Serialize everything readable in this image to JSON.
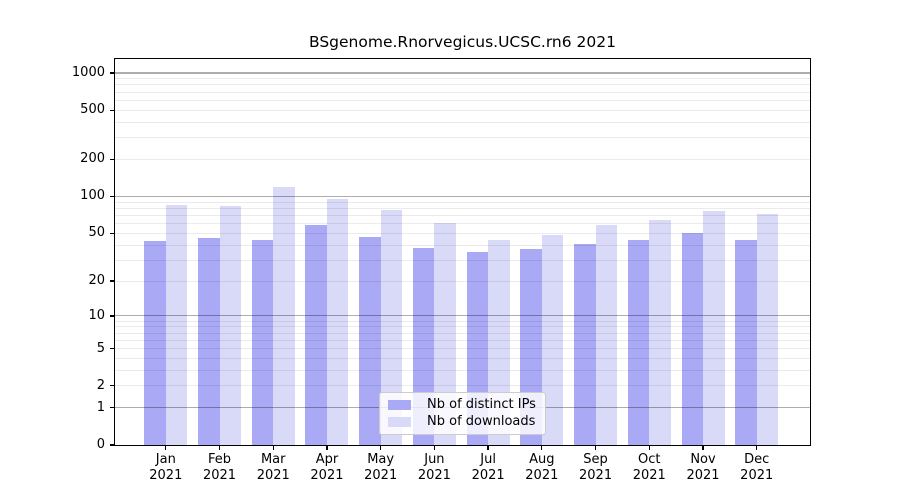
{
  "colors": {
    "background": "#ffffff",
    "text": "#000000",
    "axis": "#000000",
    "major_grid": "rgba(0,0,0,0.32)",
    "minor_grid": "rgba(0,0,0,0.08)",
    "legend_border": "#cccccc",
    "legend_bg": "rgba(255,255,255,0.8)",
    "series_ips": "#a9a9f5",
    "series_downloads": "#d9d9f8"
  },
  "chart_data": {
    "type": "bar",
    "title": "BSgenome.Rnorvegicus.UCSC.rn6 2021",
    "categories": [
      "Jan",
      "Feb",
      "Mar",
      "Apr",
      "May",
      "Jun",
      "Jul",
      "Aug",
      "Sep",
      "Oct",
      "Nov",
      "Dec"
    ],
    "category_year": "2021",
    "series": [
      {
        "name": "Nb of distinct IPs",
        "color": "#a9a9f5",
        "values": [
          43,
          46,
          44,
          59,
          47,
          38,
          35,
          37,
          41,
          44,
          50,
          44
        ]
      },
      {
        "name": "Nb of downloads",
        "color": "#d9d9f8",
        "values": [
          85,
          83,
          120,
          96,
          77,
          61,
          44,
          48,
          58,
          64,
          76,
          72
        ]
      }
    ],
    "y_axis": {
      "scale": "log1p",
      "tick_values": [
        0,
        1,
        2,
        5,
        10,
        20,
        50,
        100,
        200,
        500,
        1000
      ],
      "major_gridline_values": [
        1,
        10,
        100,
        1000
      ],
      "minor_gridline_values": [
        2,
        3,
        4,
        5,
        6,
        7,
        8,
        9,
        20,
        30,
        40,
        50,
        60,
        70,
        80,
        90,
        200,
        300,
        400,
        500,
        600,
        700,
        800,
        900
      ],
      "ylim": [
        0,
        1300
      ],
      "grid": true
    },
    "legend": {
      "position": "bottom-center",
      "entries": [
        "Nb of distinct IPs",
        "Nb of downloads"
      ]
    }
  }
}
